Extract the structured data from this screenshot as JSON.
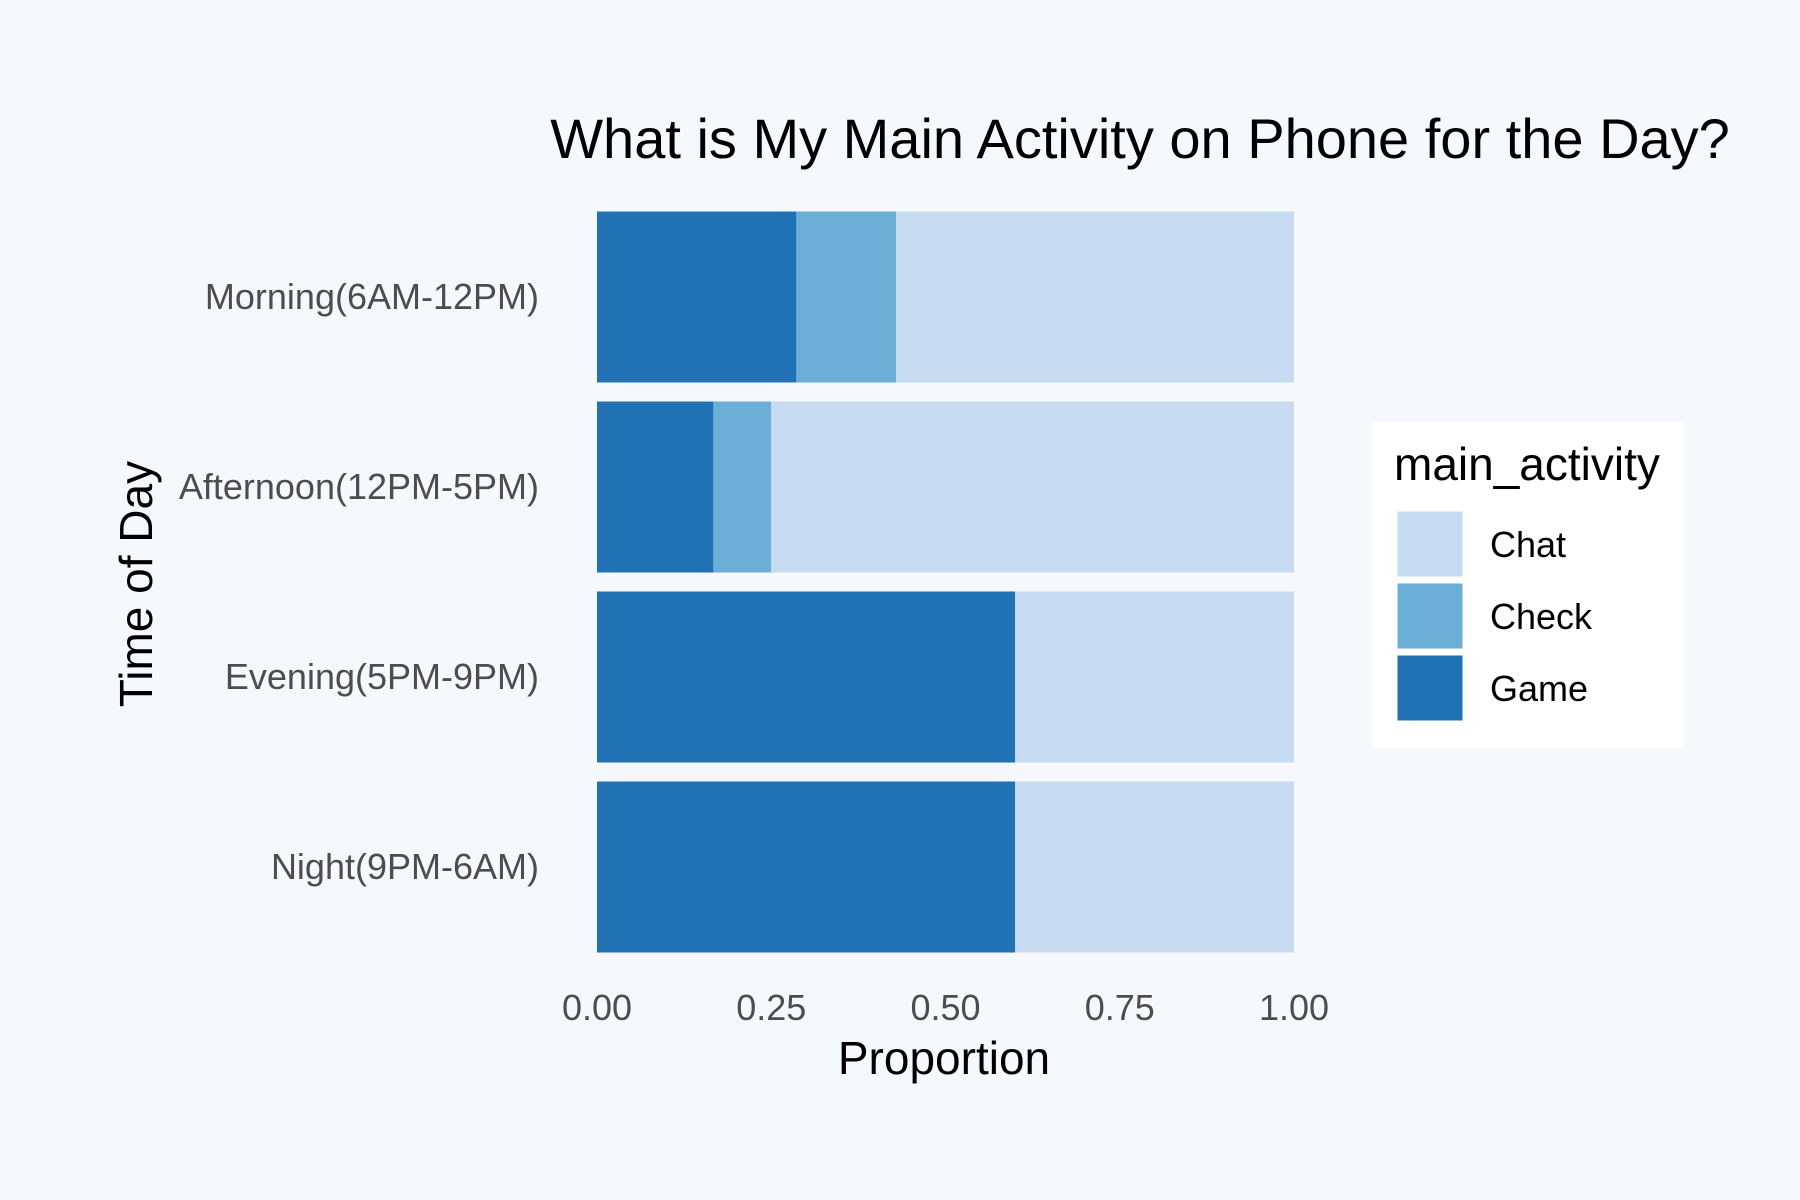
{
  "chart_data": {
    "type": "bar",
    "orientation": "horizontal",
    "stacked": true,
    "title": "What is My Main Activity on Phone for the Day?",
    "xlabel": "Proportion",
    "ylabel": "Time of Day",
    "xlim": [
      0,
      1
    ],
    "x_ticks": [
      "0.00",
      "0.25",
      "0.50",
      "0.75",
      "1.00"
    ],
    "grid": false,
    "legend_position": "right",
    "legend_title": "main_activity",
    "categories": [
      "Morning(6AM-12PM)",
      "Afternoon(12PM-5PM)",
      "Evening(5PM-9PM)",
      "Night(9PM-6AM)"
    ],
    "series": [
      {
        "name": "Game",
        "color": "#2171b5",
        "values": [
          0.286,
          0.167,
          0.6,
          0.6
        ]
      },
      {
        "name": "Check",
        "color": "#6baed6",
        "values": [
          0.143,
          0.083,
          0.0,
          0.0
        ]
      },
      {
        "name": "Chat",
        "color": "#c6dbef",
        "values": [
          0.571,
          0.75,
          0.4,
          0.4
        ]
      }
    ],
    "legend_order": [
      "Chat",
      "Check",
      "Game"
    ]
  },
  "colors": {
    "background": "#f5f9fe",
    "legend_background": "#ffffff"
  }
}
